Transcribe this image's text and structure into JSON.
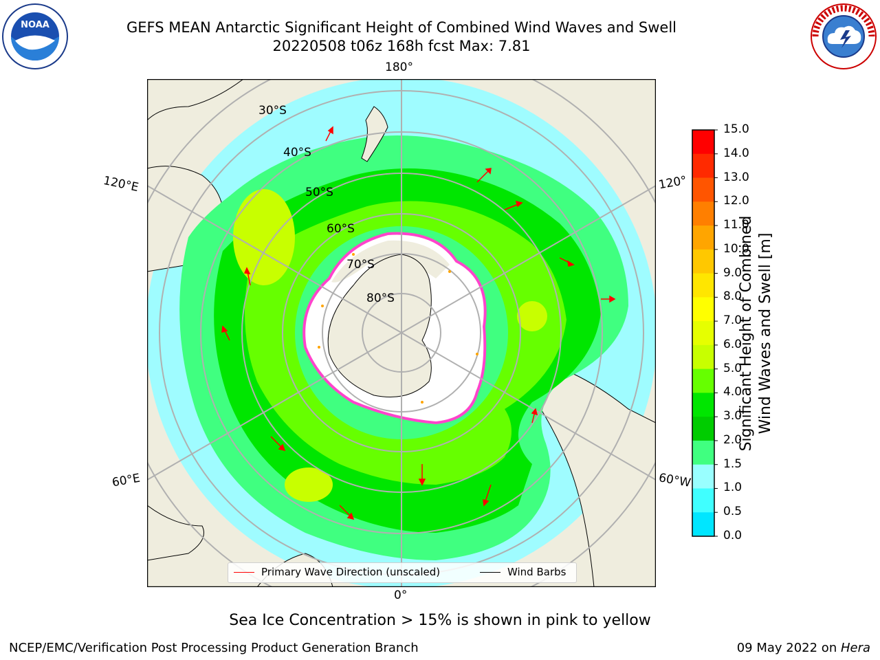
{
  "title_line1": "GEFS MEAN Antarctic Significant Height of Combined Wind Waves and Swell",
  "title_line2": "20220508 t06z 168h fcst   Max: 7.81",
  "logos": {
    "noaa_icon": "noaa-logo",
    "noaa_text": "NOAA",
    "nws_icon": "nws-logo"
  },
  "map": {
    "longitude_labels": {
      "top": "180°",
      "bottom": "0°",
      "left_upper": "120°E",
      "left_lower": "60°E",
      "right_upper": "120°",
      "right_lower": "60°W"
    },
    "latitude_labels": [
      "30°S",
      "40°S",
      "50°S",
      "60°S",
      "70°S",
      "80°S"
    ]
  },
  "colorbar": {
    "ticks": [
      "15.0",
      "14.0",
      "13.0",
      "12.0",
      "11.0",
      "10.0",
      "9.0",
      "8.0",
      "7.0",
      "6.0",
      "5.0",
      "4.0",
      "3.0",
      "2.0",
      "1.5",
      "1.0",
      "0.5",
      "0.0"
    ],
    "colors": [
      "#ff0000",
      "#ff2a00",
      "#ff5500",
      "#ff7f00",
      "#ffa500",
      "#ffc800",
      "#ffe600",
      "#ffff00",
      "#e6ff00",
      "#c8ff00",
      "#66ff00",
      "#00e600",
      "#00cc00",
      "#40ff80",
      "#99ffff",
      "#40ffff",
      "#00e6ff",
      "#0080ff",
      "#0000ff"
    ],
    "label_line1": "Significant Height of Combined",
    "label_line2": "Wind Waves and Swell [m]"
  },
  "legend": {
    "wave_direction": "Primary Wave Direction (unscaled)",
    "wind_barbs": "Wind Barbs",
    "wave_color": "#ff0000",
    "barb_color": "#000000"
  },
  "sea_ice_note": "Sea Ice Concentration > 15% is shown in pink to yellow",
  "footer": {
    "left": "NCEP/EMC/Verification Post Processing Product Generation Branch",
    "right_prefix": "09 May 2022 on ",
    "right_host": "Hera"
  }
}
